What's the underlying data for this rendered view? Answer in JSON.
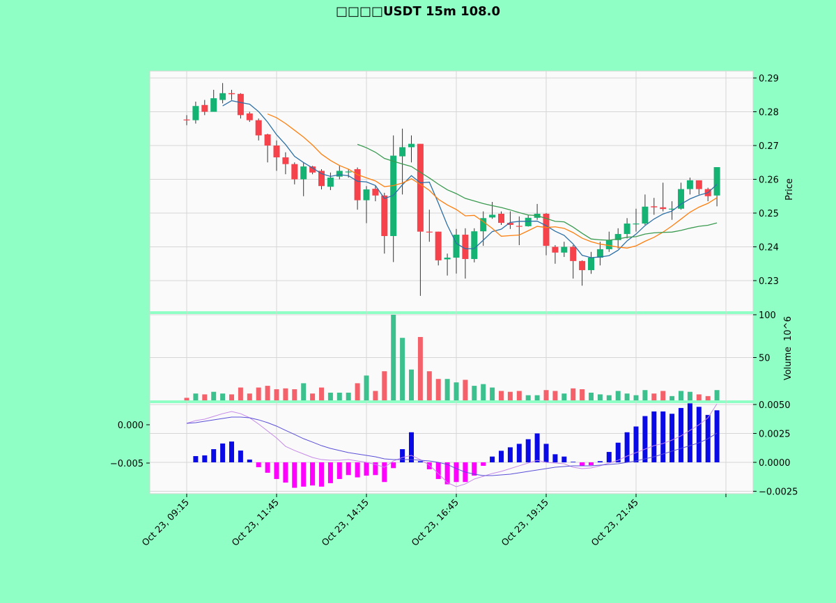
{
  "chart_data": [
    {
      "type": "candlestick",
      "title": "□□□□USDT 15m 108.0",
      "ylabel": "Price",
      "ylim": [
        0.2209,
        0.2919
      ],
      "yticks": [
        0.23,
        0.24,
        0.25,
        0.26,
        0.27,
        0.28,
        0.29
      ],
      "grid": true,
      "x_tick_labels": [
        "Oct 23, 09:15",
        "Oct 23, 11:45",
        "Oct 23, 14:15",
        "Oct 23, 16:45",
        "Oct 23, 19:15",
        "Oct 23, 21:45",
        ""
      ],
      "x_tick_every": 10,
      "moving_averages": [
        {
          "window": 5,
          "color": "#2c6fa6"
        },
        {
          "window": 10,
          "color": "#ff7f0e"
        },
        {
          "window": 20,
          "color": "#3a9a50"
        }
      ],
      "colors": {
        "up": "#14b374",
        "down": "#f5424b"
      },
      "ohlc": [
        [
          0.2777,
          0.279,
          0.276,
          0.2775
        ],
        [
          0.2775,
          0.283,
          0.2765,
          0.2817
        ],
        [
          0.282,
          0.2835,
          0.279,
          0.28
        ],
        [
          0.28,
          0.2865,
          0.28,
          0.284
        ],
        [
          0.2835,
          0.2885,
          0.2825,
          0.2855
        ],
        [
          0.2855,
          0.2865,
          0.2835,
          0.2852
        ],
        [
          0.2853,
          0.2855,
          0.278,
          0.279
        ],
        [
          0.2795,
          0.28,
          0.277,
          0.2775
        ],
        [
          0.2775,
          0.278,
          0.2715,
          0.273
        ],
        [
          0.2733,
          0.2735,
          0.265,
          0.27
        ],
        [
          0.27,
          0.2715,
          0.2625,
          0.2665
        ],
        [
          0.2665,
          0.268,
          0.2615,
          0.2645
        ],
        [
          0.2645,
          0.265,
          0.2585,
          0.26
        ],
        [
          0.26,
          0.265,
          0.255,
          0.2638
        ],
        [
          0.2638,
          0.264,
          0.2615,
          0.262
        ],
        [
          0.2625,
          0.263,
          0.257,
          0.258
        ],
        [
          0.2578,
          0.262,
          0.2568,
          0.2605
        ],
        [
          0.2608,
          0.264,
          0.26,
          0.2625
        ],
        [
          0.2622,
          0.263,
          0.2605,
          0.2623
        ],
        [
          0.263,
          0.2635,
          0.251,
          0.2538
        ],
        [
          0.2538,
          0.258,
          0.247,
          0.257
        ],
        [
          0.2572,
          0.258,
          0.2535,
          0.2552
        ],
        [
          0.2552,
          0.256,
          0.238,
          0.2432
        ],
        [
          0.2432,
          0.273,
          0.2355,
          0.267
        ],
        [
          0.2668,
          0.275,
          0.2555,
          0.2695
        ],
        [
          0.2695,
          0.273,
          0.265,
          0.2705
        ],
        [
          0.2705,
          0.2705,
          0.2255,
          0.2445
        ],
        [
          0.2445,
          0.251,
          0.2415,
          0.2443
        ],
        [
          0.2445,
          0.2445,
          0.2345,
          0.236
        ],
        [
          0.2363,
          0.238,
          0.2315,
          0.2368
        ],
        [
          0.2368,
          0.2453,
          0.2321,
          0.2436
        ],
        [
          0.2436,
          0.2455,
          0.2306,
          0.2364
        ],
        [
          0.2364,
          0.2455,
          0.2354,
          0.2446
        ],
        [
          0.2446,
          0.2505,
          0.2403,
          0.2485
        ],
        [
          0.2487,
          0.2533,
          0.2483,
          0.2495
        ],
        [
          0.2498,
          0.2505,
          0.2465,
          0.2471
        ],
        [
          0.2471,
          0.2505,
          0.2453,
          0.2465
        ],
        [
          0.2462,
          0.249,
          0.2405,
          0.2461
        ],
        [
          0.2461,
          0.2495,
          0.246,
          0.2486
        ],
        [
          0.2486,
          0.2527,
          0.248,
          0.2498
        ],
        [
          0.2498,
          0.25,
          0.2375,
          0.2403
        ],
        [
          0.24,
          0.2405,
          0.235,
          0.2383
        ],
        [
          0.2383,
          0.2415,
          0.237,
          0.24
        ],
        [
          0.24,
          0.2405,
          0.2306,
          0.2358
        ],
        [
          0.2358,
          0.236,
          0.2285,
          0.2331
        ],
        [
          0.2331,
          0.2385,
          0.232,
          0.2368
        ],
        [
          0.2368,
          0.2415,
          0.2345,
          0.2393
        ],
        [
          0.2393,
          0.2445,
          0.2385,
          0.242
        ],
        [
          0.242,
          0.2455,
          0.2395,
          0.2438
        ],
        [
          0.2438,
          0.2485,
          0.2425,
          0.2469
        ],
        [
          0.2467,
          0.2513,
          0.2445,
          0.2469
        ],
        [
          0.2469,
          0.2555,
          0.2465,
          0.2519
        ],
        [
          0.252,
          0.2545,
          0.2495,
          0.2517
        ],
        [
          0.2517,
          0.259,
          0.2505,
          0.2512
        ],
        [
          0.2512,
          0.2535,
          0.248,
          0.2513
        ],
        [
          0.2513,
          0.259,
          0.251,
          0.2571
        ],
        [
          0.2571,
          0.2605,
          0.2555,
          0.2597
        ],
        [
          0.2597,
          0.2597,
          0.2555,
          0.2571
        ],
        [
          0.2571,
          0.2575,
          0.2535,
          0.255
        ],
        [
          0.2552,
          0.2636,
          0.252,
          0.2636
        ]
      ]
    },
    {
      "type": "bar",
      "ylabel": "Volume",
      "yunit": "10^6",
      "ylim": [
        0,
        102
      ],
      "yticks": [
        50,
        100
      ],
      "colors": {
        "up": "#3cc08e",
        "down": "#f5616a"
      },
      "values": [
        3,
        8,
        7,
        10,
        8,
        7,
        15,
        8,
        15,
        17,
        13,
        14,
        13,
        20,
        8,
        15,
        9,
        9,
        9,
        20,
        29,
        11,
        34,
        100,
        73,
        36,
        74,
        34,
        25,
        25,
        21,
        24,
        17,
        19,
        15,
        11,
        10,
        11,
        6,
        6,
        12,
        11,
        8,
        14,
        13,
        9,
        7,
        6,
        11,
        8,
        6,
        12,
        8,
        11,
        5,
        11,
        10,
        7,
        5,
        12
      ]
    },
    {
      "type": "bar+line",
      "histogram_ylim": [
        -0.0027,
        0.0052
      ],
      "histogram_yticks": [
        -0.0025,
        0.0,
        0.0025,
        0.005
      ],
      "histogram_tick_labels": [
        "−0.0025",
        "0.0000",
        "0.0025",
        "0.0050"
      ],
      "line_yticks": [
        0.0,
        -0.005
      ],
      "line_tick_labels": [
        "0.000",
        "−0.005"
      ],
      "colors": {
        "hist_pos": "#0a0ae6",
        "hist_neg": "#ff00ff",
        "macd": "#c58ae8",
        "signal": "#5a4fd8"
      },
      "histogram": [
        0,
        0.00054,
        0.0006,
        0.00114,
        0.00163,
        0.0018,
        0.00102,
        0.00024,
        -0.00042,
        -0.0009,
        -0.00144,
        -0.00175,
        -0.0022,
        -0.0021,
        -0.002,
        -0.0021,
        -0.0018,
        -0.00144,
        -0.0011,
        -0.0013,
        -0.00115,
        -0.0011,
        -0.0017,
        -0.0005,
        0.00114,
        0.0026,
        0.0001,
        -0.0006,
        -0.00144,
        -0.0019,
        -0.0017,
        -0.0017,
        -0.00115,
        -0.0003,
        0.0005,
        0.001,
        0.0013,
        0.0016,
        0.002,
        0.0025,
        0.0016,
        0.0007,
        0.0005,
        5e-05,
        -0.0003,
        -0.00025,
        0.0001,
        0.0009,
        0.0017,
        0.0026,
        0.0031,
        0.004,
        0.0044,
        0.0044,
        0.0042,
        0.0047,
        0.0051,
        0.0048,
        0.0041,
        0.0045
      ],
      "macd": [
        0.00018,
        0.00055,
        0.00073,
        0.00109,
        0.00145,
        0.00173,
        0.00145,
        0.00091,
        9e-05,
        -0.00082,
        -0.00173,
        -0.00282,
        -0.00336,
        -0.00382,
        -0.00427,
        -0.00455,
        -0.00464,
        -0.00464,
        -0.00455,
        -0.00473,
        -0.00491,
        -0.00518,
        -0.00555,
        -0.00473,
        -0.00427,
        -0.004,
        -0.00455,
        -0.00527,
        -0.00636,
        -0.00755,
        -0.00809,
        -0.00773,
        -0.00709,
        -0.00673,
        -0.00636,
        -0.00609,
        -0.00573,
        -0.00536,
        -0.005,
        -0.00464,
        -0.00491,
        -0.005,
        -0.00509,
        -0.00555,
        -0.00573,
        -0.00564,
        -0.00536,
        -0.005,
        -0.00464,
        -0.00409,
        -0.00364,
        -0.00318,
        -0.00273,
        -0.00245,
        -0.002,
        -0.00145,
        -0.00073,
        0.0,
        0.00091,
        0.00273
      ],
      "signal": [
        0.00018,
        0.00027,
        0.00045,
        0.00064,
        0.00082,
        0.001,
        0.001,
        0.00091,
        0.00064,
        0.00027,
        -0.00018,
        -0.00073,
        -0.00127,
        -0.00182,
        -0.00227,
        -0.00273,
        -0.00309,
        -0.00336,
        -0.00364,
        -0.00382,
        -0.004,
        -0.00418,
        -0.00445,
        -0.00455,
        -0.00455,
        -0.00455,
        -0.00464,
        -0.00473,
        -0.00491,
        -0.00518,
        -0.00573,
        -0.00618,
        -0.00645,
        -0.00664,
        -0.00664,
        -0.00655,
        -0.00645,
        -0.00627,
        -0.00609,
        -0.00591,
        -0.00573,
        -0.00555,
        -0.00545,
        -0.00536,
        -0.00536,
        -0.00536,
        -0.00527,
        -0.00518,
        -0.00509,
        -0.00491,
        -0.00473,
        -0.00445,
        -0.00418,
        -0.00382,
        -0.00345,
        -0.00309,
        -0.00273,
        -0.00236,
        -0.00182,
        -0.00109
      ]
    }
  ]
}
